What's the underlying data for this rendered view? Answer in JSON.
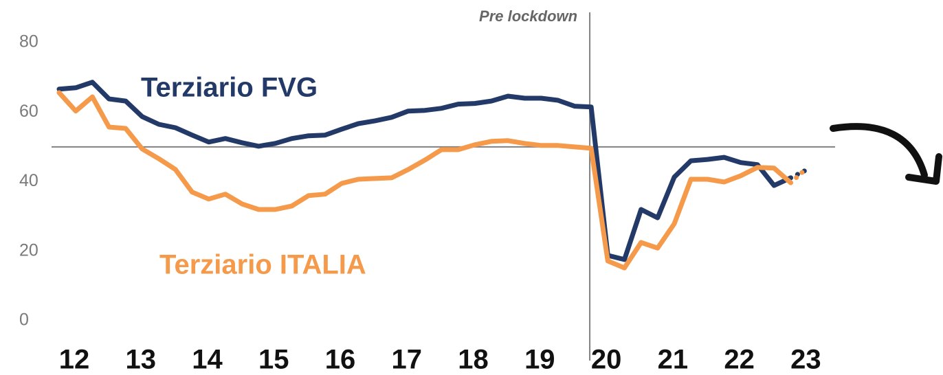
{
  "chart_data": {
    "type": "line",
    "categories": [
      "12",
      null,
      null,
      null,
      "13",
      null,
      null,
      null,
      "14",
      null,
      null,
      null,
      "15",
      null,
      null,
      null,
      "16",
      null,
      null,
      null,
      "17",
      null,
      null,
      null,
      "18",
      null,
      null,
      null,
      "19",
      null,
      null,
      null,
      "20",
      null,
      null,
      null,
      "21",
      null,
      null,
      null,
      "22",
      null,
      null,
      null,
      "23",
      null
    ],
    "series": [
      {
        "name": "Terziario FVG",
        "color": "#233a68",
        "dashed_from": 44,
        "values": [
          66.6,
          67,
          68.6,
          63.8,
          63.2,
          58.7,
          56.5,
          55.5,
          53.4,
          51.4,
          52.4,
          51.2,
          50.2,
          51,
          52.4,
          53.2,
          53.4,
          55.1,
          56.7,
          57.5,
          58.5,
          60.3,
          60.5,
          61.1,
          62.3,
          62.5,
          63.2,
          64.6,
          64,
          64,
          63.4,
          61.7,
          61.5,
          18.8,
          17.6,
          32,
          29.6,
          41.3,
          46,
          46.4,
          47,
          45.5,
          44.9,
          38.9,
          41.1,
          43.5
        ]
      },
      {
        "name": "Terziario ITALIA",
        "color": "#f5994a",
        "dashed_from": 44,
        "values": [
          65.6,
          60.3,
          64.4,
          55.7,
          55.3,
          49.4,
          46.6,
          43.5,
          37,
          35,
          36.4,
          33.6,
          32,
          32,
          33,
          36,
          36.4,
          39.5,
          40.7,
          40.9,
          41.1,
          43.5,
          46.2,
          49.2,
          49.2,
          50.6,
          51.6,
          51.8,
          51,
          50.4,
          50.4,
          50,
          49.6,
          17.2,
          15.2,
          22.5,
          20.9,
          27.9,
          40.7,
          40.7,
          39.9,
          41.7,
          44.1,
          43.9,
          39.7,
          44
        ]
      }
    ],
    "ylim": [
      0,
      80
    ],
    "yticks": [
      0,
      20,
      40,
      60,
      80
    ],
    "grid": false,
    "reference_line": 50,
    "vline": {
      "index": 32,
      "label": "Pre lockdown"
    }
  }
}
